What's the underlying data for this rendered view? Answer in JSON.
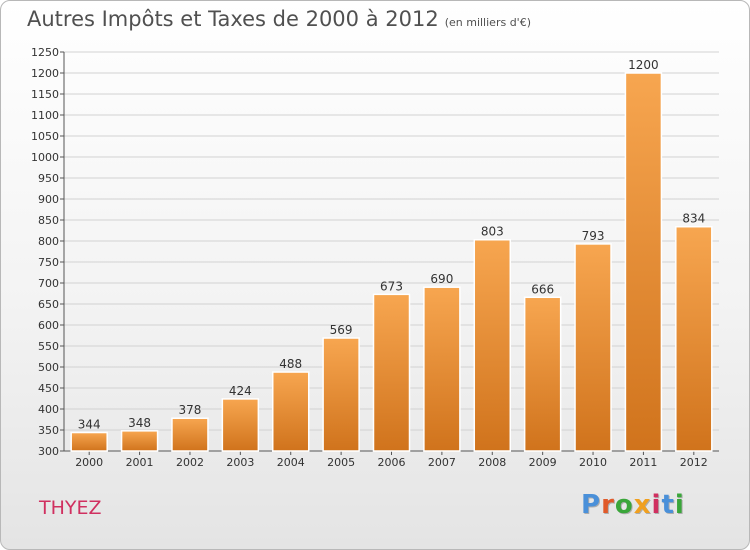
{
  "header": {
    "title": "Autres Impôts et Taxes de 2000 à 2012",
    "subtitle": "(en milliers d'€)"
  },
  "location": "THYEZ",
  "logo": {
    "text": "Proxiti",
    "colors": [
      "#4a90d9",
      "#e05a2a",
      "#3aa63a",
      "#f0a020",
      "#d03060",
      "#4a90d9",
      "#3aa63a"
    ]
  },
  "chart_data": {
    "type": "bar",
    "title": "Autres Impôts et Taxes de 2000 à 2012",
    "subtitle": "(en milliers d'€)",
    "categories": [
      "2000",
      "2001",
      "2002",
      "2003",
      "2004",
      "2005",
      "2006",
      "2007",
      "2008",
      "2009",
      "2010",
      "2011",
      "2012"
    ],
    "values": [
      344,
      348,
      378,
      424,
      488,
      569,
      673,
      690,
      803,
      666,
      793,
      1200,
      834
    ],
    "ylim": [
      300,
      1250
    ],
    "yticks": [
      300,
      350,
      400,
      450,
      500,
      550,
      600,
      650,
      700,
      750,
      800,
      850,
      900,
      950,
      1000,
      1050,
      1100,
      1150,
      1200,
      1250
    ],
    "grid": true,
    "bar_color": "#f0922e",
    "xlabel": "",
    "ylabel": ""
  }
}
